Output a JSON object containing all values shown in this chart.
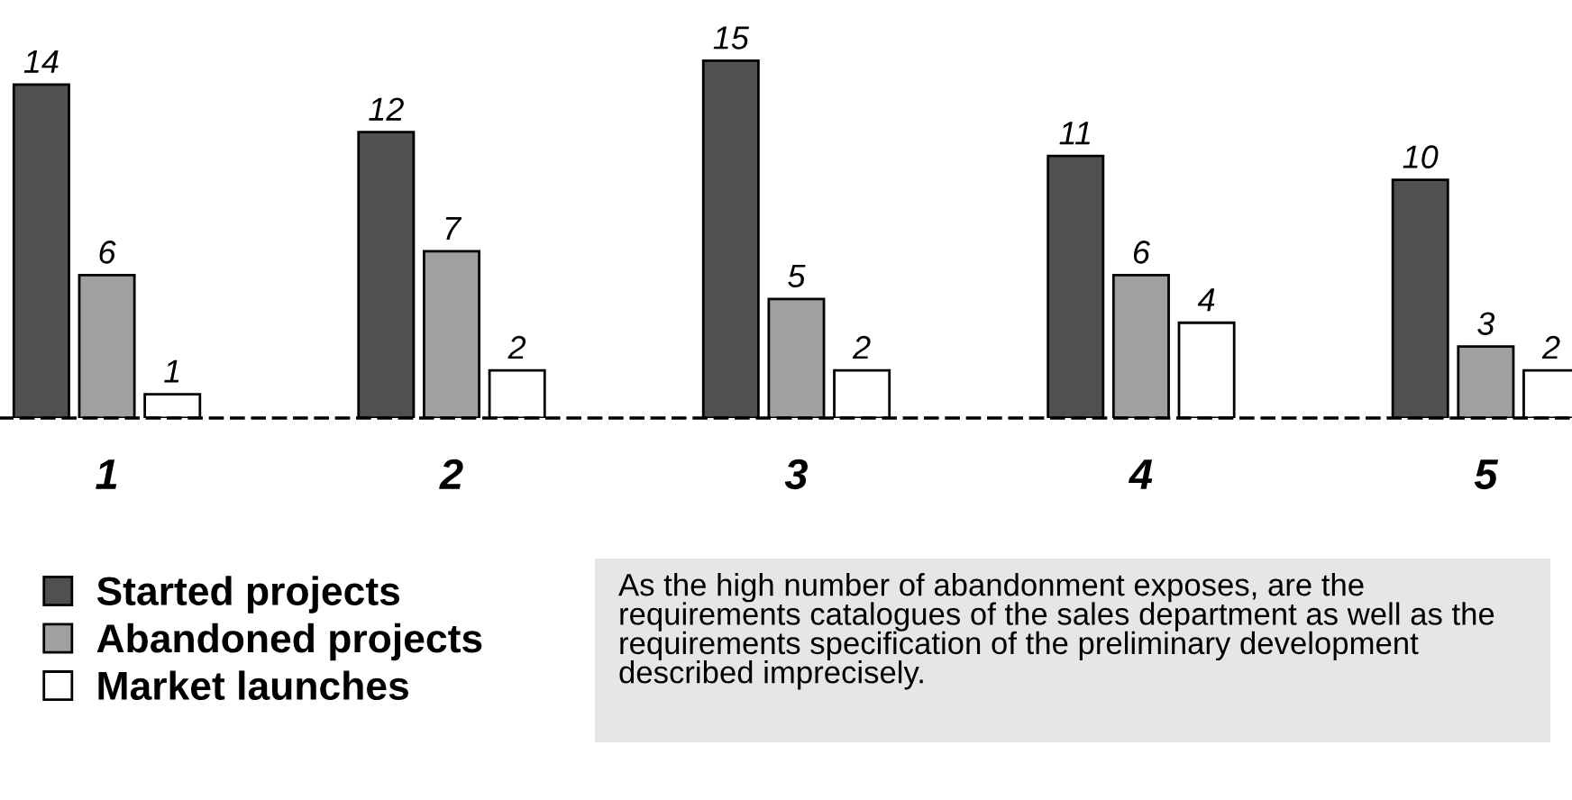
{
  "chart_data": {
    "type": "bar",
    "categories": [
      "1",
      "2",
      "3",
      "4",
      "5"
    ],
    "series": [
      {
        "name": "Started projects",
        "color": "#505050",
        "values": [
          14,
          12,
          15,
          11,
          10
        ]
      },
      {
        "name": "Abandoned projects",
        "color": "#a0a0a0",
        "values": [
          6,
          7,
          5,
          6,
          3
        ]
      },
      {
        "name": "Market launches",
        "color": "#ffffff",
        "values": [
          1,
          2,
          2,
          4,
          2
        ]
      }
    ],
    "data_labels": true,
    "legend": "bottom left",
    "grid": false,
    "annotations": [
      "As the high number of abandonment exposes, are the requirements catalogues of the sales department as well as the requirements specification of the preliminary development described imprecisely."
    ]
  }
}
